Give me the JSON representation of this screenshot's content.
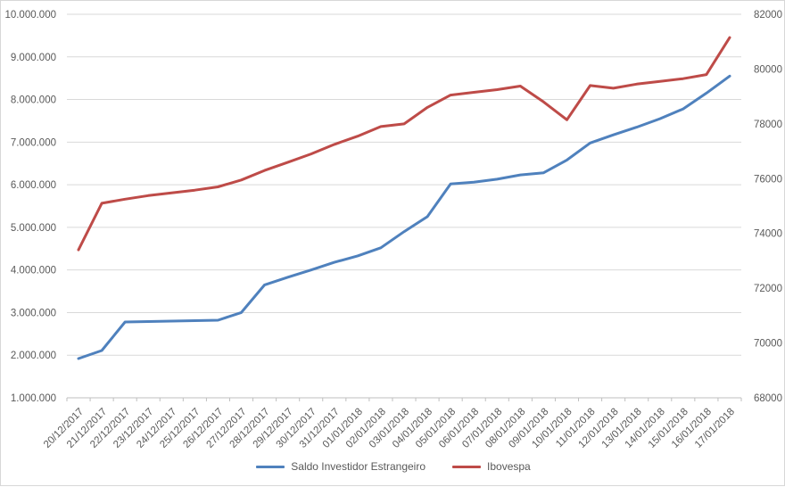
{
  "chart_data": {
    "type": "line",
    "title": "",
    "categories": [
      "20/12/2017",
      "21/12/2017",
      "22/12/2017",
      "23/12/2017",
      "24/12/2017",
      "25/12/2017",
      "26/12/2017",
      "27/12/2017",
      "28/12/2017",
      "29/12/2017",
      "30/12/2017",
      "31/12/2017",
      "01/01/2018",
      "02/01/2018",
      "03/01/2018",
      "04/01/2018",
      "05/01/2018",
      "06/01/2018",
      "07/01/2018",
      "08/01/2018",
      "09/01/2018",
      "10/01/2018",
      "11/01/2018",
      "12/01/2018",
      "13/01/2018",
      "14/01/2018",
      "15/01/2018",
      "16/01/2018",
      "17/01/2018"
    ],
    "series": [
      {
        "name": "Saldo Investidor Estrangeiro",
        "axis": "left",
        "color": "#4F81BD",
        "values": [
          1920000,
          2110000,
          2780000,
          2790000,
          2800000,
          2810000,
          2820000,
          3000000,
          3650000,
          3830000,
          4000000,
          4180000,
          4330000,
          4520000,
          4900000,
          5250000,
          6020000,
          6060000,
          6130000,
          6230000,
          6280000,
          6580000,
          6980000,
          7170000,
          7350000,
          7550000,
          7780000,
          8150000,
          8550000
        ]
      },
      {
        "name": "Ibovespa",
        "axis": "right",
        "color": "#BE4B48",
        "values": [
          73400,
          75100,
          75250,
          75380,
          75480,
          75580,
          75700,
          75950,
          76300,
          76600,
          76900,
          77250,
          77550,
          77900,
          78000,
          78600,
          79050,
          79150,
          79250,
          79380,
          78800,
          78150,
          79400,
          79300,
          79450,
          79550,
          79650,
          79800,
          81150
        ]
      }
    ],
    "left_axis": {
      "min": 1000000,
      "max": 10000000,
      "step": 1000000,
      "tick_format": "dot-thousands"
    },
    "right_axis": {
      "min": 68000,
      "max": 82000,
      "step": 2000,
      "tick_format": "plain"
    },
    "grid": true,
    "legend_position": "bottom",
    "x_label_rotation_deg": -45
  },
  "style": {
    "gridline_color": "#D9D9D9",
    "axis_line_color": "#BFBFBF",
    "label_color": "#595959",
    "background": "#FFFFFF",
    "frame_border": "#D7D7D7",
    "line_width": 3,
    "axis_font_px": 11.5
  }
}
